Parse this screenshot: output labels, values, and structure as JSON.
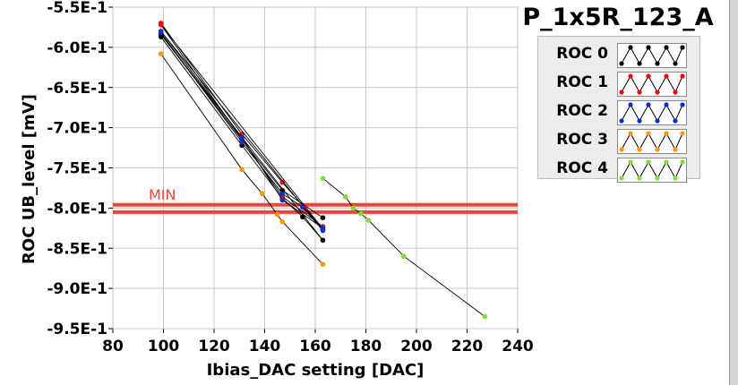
{
  "window": {
    "title": "P_1x5R_123_A"
  },
  "chart_data": {
    "type": "scatter",
    "title": "P_1x5R_123_A",
    "xlabel": "Ibias_DAC setting [DAC]",
    "ylabel": "ROC UB_level [mV]",
    "xlim": [
      80,
      240
    ],
    "ylim": [
      -0.95,
      -0.55
    ],
    "x_ticks": [
      "80",
      "100",
      "120",
      "140",
      "160",
      "180",
      "200",
      "220",
      "240"
    ],
    "y_ticks": [
      "-5.5E-1",
      "-6.0E-1",
      "-6.5E-1",
      "-7.0E-1",
      "-7.5E-1",
      "-8.0E-1",
      "-8.5E-1",
      "-9.0E-1",
      "-9.5E-1"
    ],
    "grid": true,
    "legend_position": "top-right",
    "threshold_label": "MIN",
    "threshold_lines": [
      -0.796,
      -0.805
    ],
    "threshold_color": "#e8463a",
    "series": [
      {
        "name": "ROC 0",
        "color": "#000000",
        "x": [
          99,
          131,
          147,
          155,
          163,
          99,
          131,
          147,
          163
        ],
        "y": [
          -0.587,
          -0.722,
          -0.788,
          -0.811,
          -0.84,
          -0.584,
          -0.715,
          -0.778,
          -0.812
        ]
      },
      {
        "name": "ROC 1",
        "color": "#ff0000",
        "x": [
          99,
          131,
          147,
          156,
          163,
          99,
          131,
          147,
          163
        ],
        "y": [
          -0.57,
          -0.708,
          -0.768,
          -0.8,
          -0.826,
          -0.572,
          -0.714,
          -0.786,
          -0.823
        ]
      },
      {
        "name": "ROC 2",
        "color": "#0030d0",
        "x": [
          99,
          131,
          147,
          155,
          163,
          99,
          131,
          147,
          163
        ],
        "y": [
          -0.582,
          -0.718,
          -0.782,
          -0.799,
          -0.828,
          -0.58,
          -0.712,
          -0.79,
          -0.825
        ]
      },
      {
        "name": "ROC 3",
        "color": "#ff9900",
        "x": [
          99,
          131,
          139,
          145,
          147,
          163
        ],
        "y": [
          -0.608,
          -0.752,
          -0.782,
          -0.808,
          -0.817,
          -0.87
        ]
      },
      {
        "name": "ROC 4",
        "color": "#7de030",
        "x": [
          163,
          172,
          175,
          178,
          181,
          195,
          227
        ],
        "y": [
          -0.763,
          -0.786,
          -0.8,
          -0.807,
          -0.815,
          -0.86,
          -0.935
        ]
      }
    ]
  }
}
